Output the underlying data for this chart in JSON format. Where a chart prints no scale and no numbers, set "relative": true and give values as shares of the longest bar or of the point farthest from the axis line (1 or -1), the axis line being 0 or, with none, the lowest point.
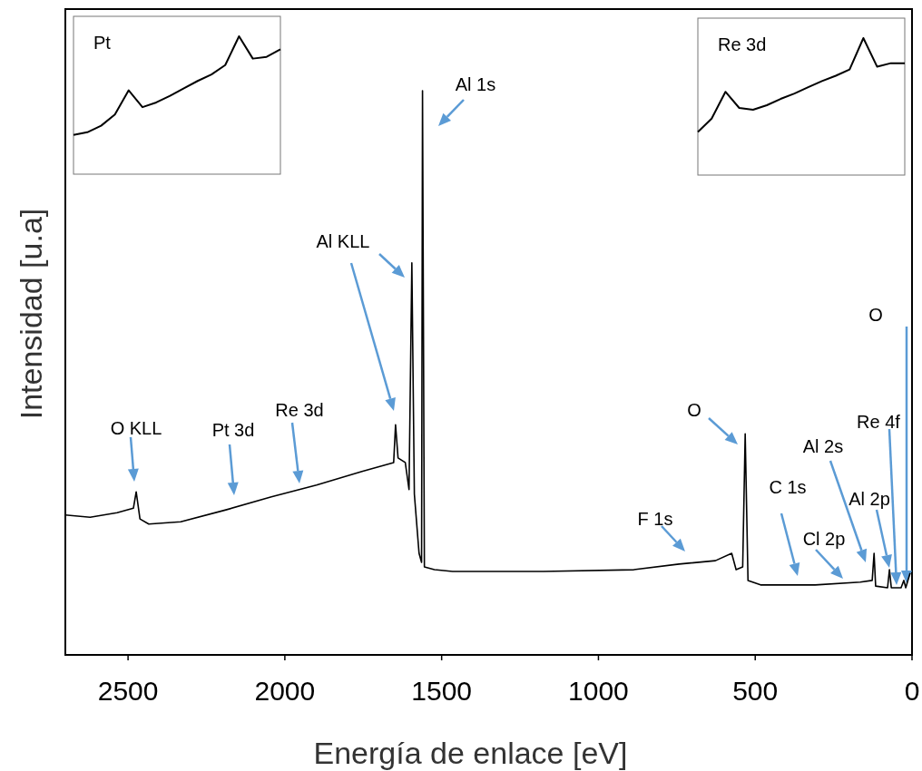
{
  "chart_data": [
    {
      "type": "line",
      "xlabel": "Energía de enlace [eV]",
      "ylabel": "Intensidad [u.a]",
      "relative": true,
      "xlim": [
        2700,
        0
      ],
      "xticks": [
        2500,
        2000,
        1500,
        1000,
        500,
        0
      ],
      "tick_labels": "x",
      "x": [
        2700,
        2621,
        2535,
        2483,
        2474,
        2462,
        2434,
        2332,
        2188,
        2043,
        1899,
        1754,
        1653,
        1647,
        1639,
        1616,
        1604,
        1595,
        1587,
        1572,
        1564,
        1561,
        1555,
        1523,
        1465,
        1176,
        887,
        743,
        627,
        575,
        561,
        540,
        532,
        523,
        483,
        309,
        165,
        127,
        121,
        116,
        78,
        72,
        66,
        35,
        26,
        20,
        6
      ],
      "series": [
        {
          "color": "#000000",
          "values": [
            0.248,
            0.244,
            0.252,
            0.26,
            0.289,
            0.241,
            0.232,
            0.236,
            0.257,
            0.28,
            0.301,
            0.325,
            0.341,
            0.408,
            0.349,
            0.341,
            0.293,
            0.695,
            0.285,
            0.18,
            0.164,
            1.0,
            0.156,
            0.151,
            0.148,
            0.148,
            0.151,
            0.161,
            0.167,
            0.18,
            0.151,
            0.156,
            0.392,
            0.132,
            0.124,
            0.124,
            0.129,
            0.132,
            0.18,
            0.122,
            0.119,
            0.151,
            0.119,
            0.119,
            0.132,
            0.119,
            0.145
          ]
        }
      ],
      "annotations": [
        "O KLL",
        "Pt 3d",
        "Re 3d",
        "Al KLL",
        "Al 1s",
        "O",
        "F 1s",
        "C 1s",
        "Cl 2p",
        "Al 2s",
        "Al 2p",
        "Re 4f",
        "O"
      ]
    },
    {
      "type": "line",
      "title": "Pt",
      "relative": true,
      "tick_labels": false,
      "categories": [
        null,
        null,
        null,
        null,
        null,
        null,
        null,
        null,
        null,
        null,
        null,
        null,
        null,
        null,
        null,
        null
      ],
      "series": [
        {
          "color": "#000000",
          "values": [
            0.284,
            0.304,
            0.351,
            0.432,
            0.608,
            0.486,
            0.52,
            0.568,
            0.622,
            0.676,
            0.723,
            0.791,
            1,
            0.838,
            0.851,
            0.905
          ]
        }
      ]
    },
    {
      "type": "line",
      "title": "Re 3d",
      "relative": true,
      "tick_labels": false,
      "categories": [
        null,
        null,
        null,
        null,
        null,
        null,
        null,
        null,
        null,
        null,
        null,
        null,
        null,
        null,
        null,
        null
      ],
      "series": [
        {
          "color": "#000000",
          "values": [
            0.314,
            0.412,
            0.608,
            0.49,
            0.477,
            0.51,
            0.556,
            0.595,
            0.641,
            0.686,
            0.725,
            0.771,
            1,
            0.791,
            0.817,
            0.817
          ]
        }
      ]
    }
  ]
}
